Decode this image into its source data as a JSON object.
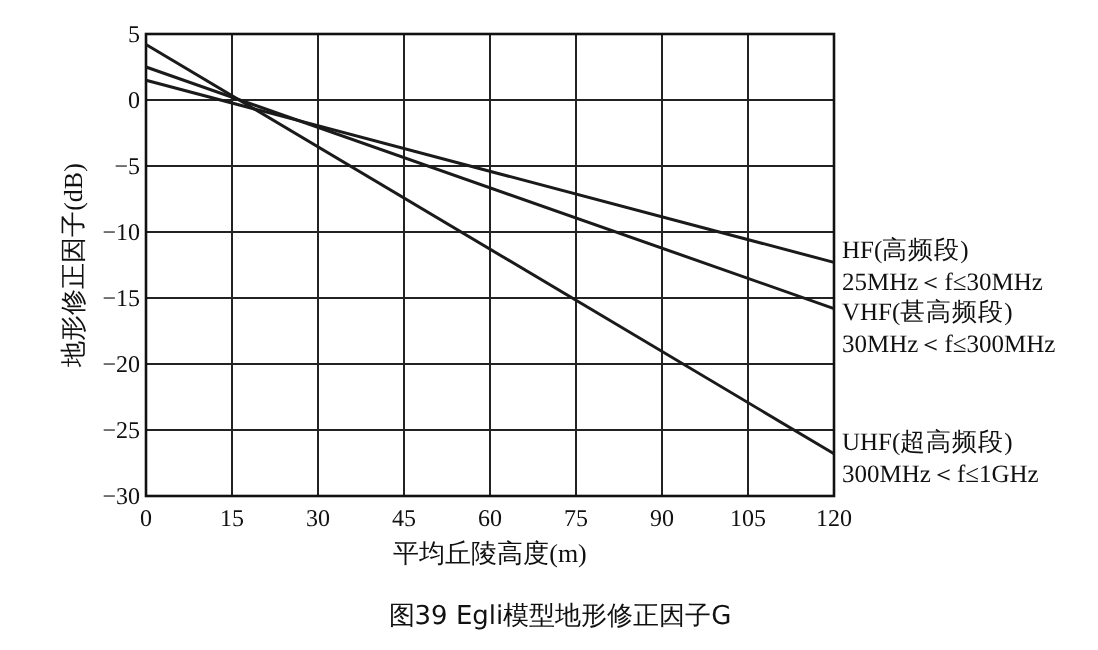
{
  "chart_data": {
    "type": "line",
    "title": "图39 Egli模型地形修正因子G",
    "xlabel": "平均丘陵高度(m)",
    "ylabel": "地形修正因子(dB)",
    "xlim": [
      0,
      120
    ],
    "xticks": [
      0,
      15,
      30,
      45,
      60,
      75,
      90,
      105,
      120
    ],
    "ylim": [
      -30,
      5
    ],
    "yticks": [
      -30,
      -25,
      -20,
      -15,
      -10,
      -5,
      0,
      5
    ],
    "x": [
      0,
      120
    ],
    "grid": true,
    "marker": "none",
    "line_style": "solid",
    "series": [
      {
        "name": "HF(高频段)\n25MHz＜f≤30MHz",
        "color": "#1a1a1a",
        "values": [
          1.5,
          -12.3
        ]
      },
      {
        "name": "VHF(甚高频段)\n30MHz＜f≤300MHz",
        "color": "#1a1a1a",
        "values": [
          2.5,
          -15.8
        ]
      },
      {
        "name": "UHF(超高频段)\n300MHz＜f≤1GHz",
        "color": "#1a1a1a",
        "values": [
          4.2,
          -26.8
        ]
      }
    ]
  }
}
